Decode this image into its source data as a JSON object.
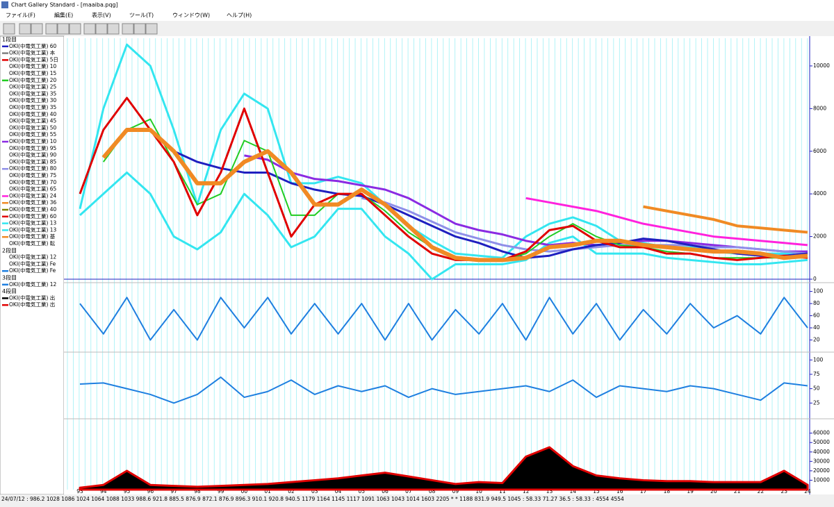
{
  "window": {
    "title": "Chart Gallery Standard - [maaiba.pqg]"
  },
  "menu": [
    "ファイル(F)",
    "編集(E)",
    "表示(V)",
    "ツール(T)",
    "ウィンドウ(W)",
    "ヘルプ(H)"
  ],
  "legend": {
    "groups": [
      {
        "heading": "1段目",
        "items": [
          {
            "label": "OKI(中電気工業) 60",
            "color": "#1f1fbf"
          },
          {
            "label": "OKI(中電気工業) 本",
            "color": "#808080"
          },
          {
            "label": "OKI(中電気工業) 5日",
            "color": "#e00000"
          },
          {
            "label": "OKI(中電気工業) 10",
            "color": "#ffffff"
          },
          {
            "label": "OKI(中電気工業) 15",
            "color": "#ffffff"
          },
          {
            "label": "OKI(中電気工業) 20",
            "color": "#22cc22"
          },
          {
            "label": "OKI(中電気工業) 25",
            "color": "#ffffff"
          },
          {
            "label": "OKI(中電気工業) 35",
            "color": "#ffffff"
          },
          {
            "label": "OKI(中電気工業) 30",
            "color": "#ffffff"
          },
          {
            "label": "OKI(中電気工業) 35",
            "color": "#ffffff"
          },
          {
            "label": "OKI(中電気工業) 40",
            "color": "#ffffff"
          },
          {
            "label": "OKI(中電気工業) 45",
            "color": "#ffffff"
          },
          {
            "label": "OKI(中電気工業) 50",
            "color": "#ffffff"
          },
          {
            "label": "OKI(中電気工業) 55",
            "color": "#ffffff"
          },
          {
            "label": "OKI(中電気工業) 10",
            "color": "#8a2be2"
          },
          {
            "label": "OKI(中電気工業) 95",
            "color": "#ffffff"
          },
          {
            "label": "OKI(中電気工業) 90",
            "color": "#ffffff"
          },
          {
            "label": "OKI(中電気工業) 85",
            "color": "#ffffff"
          },
          {
            "label": "OKI(中電気工業) 80",
            "color": "#8f8fe8"
          },
          {
            "label": "OKI(中電気工業) 75",
            "color": "#ffffff"
          },
          {
            "label": "OKI(中電気工業) 70",
            "color": "#ffffff"
          },
          {
            "label": "OKI(中電気工業) 65",
            "color": "#ffffff"
          },
          {
            "label": "OKI(中電気工業) 24",
            "color": "#ff22dd"
          },
          {
            "label": "OKI(中電気工業) 36",
            "color": "#f08a24"
          },
          {
            "label": "OKI(中電気工業) 40",
            "color": "#808000"
          },
          {
            "label": "OKI(中電気工業) 60",
            "color": "#e00000"
          },
          {
            "label": "OKI(中電気工業) 13",
            "color": "#33e6f0"
          },
          {
            "label": "OKI(中電気工業) 13",
            "color": "#33e6f0"
          },
          {
            "label": "OKI(中電気工業) 基",
            "color": "#f08a24"
          },
          {
            "label": "OKI(中電気工業) 転",
            "color": "#ffffff"
          }
        ]
      },
      {
        "heading": "2段目",
        "items": [
          {
            "label": "OKI(中電気工業) 12",
            "color": "#ffffff"
          },
          {
            "label": "OKI(中電気工業) Fe",
            "color": "#ffffff"
          },
          {
            "label": "OKI(中電気工業) Fe",
            "color": "#1e7fe0"
          }
        ]
      },
      {
        "heading": "3段目",
        "items": [
          {
            "label": "OKI(中電気工業) 12",
            "color": "#1e7fe0"
          }
        ]
      },
      {
        "heading": "4段目",
        "items": [
          {
            "label": "OKI(中電気工業) 出",
            "color": "#000000"
          },
          {
            "label": "OKI(中電気工業) 出",
            "color": "#e00000"
          }
        ]
      }
    ]
  },
  "x_labels": [
    "93",
    "94",
    "95",
    "96",
    "97",
    "98",
    "99",
    "00",
    "01",
    "02",
    "03",
    "04",
    "05",
    "06",
    "07",
    "08",
    "09",
    "10",
    "11",
    "12",
    "13",
    "14",
    "15",
    "16",
    "17",
    "18",
    "19",
    "20",
    "21",
    "22",
    "23",
    "24"
  ],
  "panels": [
    {
      "ylim": [
        0,
        11300
      ],
      "yticks": [
        0,
        2000,
        4000,
        6000,
        8000,
        10000
      ],
      "series": [
        {
          "color": "#33e6f0",
          "width": 3,
          "values": [
            3300,
            8000,
            11000,
            10000,
            7000,
            3500,
            7000,
            8700,
            8000,
            4500,
            4500,
            4800,
            4500,
            3500,
            2500,
            1800,
            1200,
            1100,
            1000,
            2000,
            2600,
            2900,
            2500,
            1800,
            1700,
            1500,
            1500,
            1300,
            1200,
            1200,
            1200,
            1300
          ]
        },
        {
          "color": "#33e6f0",
          "width": 3,
          "values": [
            3000,
            4000,
            5000,
            4000,
            2000,
            1400,
            2200,
            4000,
            3000,
            1500,
            2000,
            3300,
            3300,
            2000,
            1200,
            0,
            700,
            700,
            700,
            900,
            1700,
            2000,
            1200,
            1200,
            1200,
            1000,
            900,
            800,
            700,
            700,
            800,
            900
          ]
        },
        {
          "color": "#ff22dd",
          "width": 3,
          "values": [
            null,
            null,
            null,
            null,
            null,
            null,
            null,
            null,
            null,
            null,
            null,
            null,
            null,
            null,
            null,
            null,
            null,
            null,
            null,
            3800,
            3600,
            3400,
            3200,
            2900,
            2600,
            2400,
            2200,
            2000,
            1900,
            1800,
            1700,
            1600
          ]
        },
        {
          "color": "#f08a24",
          "width": 4,
          "values": [
            null,
            null,
            null,
            null,
            null,
            null,
            null,
            null,
            null,
            null,
            null,
            null,
            null,
            null,
            null,
            null,
            null,
            null,
            null,
            null,
            null,
            null,
            null,
            null,
            3400,
            3200,
            3000,
            2800,
            2500,
            2400,
            2300,
            2200
          ]
        },
        {
          "color": "#8a2be2",
          "width": 3,
          "values": [
            null,
            null,
            null,
            null,
            null,
            null,
            null,
            5800,
            5600,
            5000,
            4700,
            4600,
            4400,
            4200,
            3800,
            3200,
            2600,
            2300,
            2100,
            1800,
            1600,
            1700,
            1600,
            1700,
            1800,
            1800,
            1700,
            1600,
            1500,
            1400,
            1300,
            1300
          ]
        },
        {
          "color": "#8f8fe8",
          "width": 3,
          "values": [
            null,
            null,
            null,
            null,
            null,
            null,
            null,
            null,
            null,
            null,
            null,
            null,
            3800,
            3600,
            3200,
            2700,
            2200,
            1900,
            1600,
            1400,
            1300,
            1400,
            1500,
            1600,
            1600,
            1600,
            1600,
            1500,
            1500,
            1400,
            1300,
            1200
          ]
        },
        {
          "color": "#1f1fbf",
          "width": 3,
          "values": [
            null,
            null,
            null,
            null,
            6000,
            5500,
            5200,
            5000,
            5000,
            4500,
            4200,
            4000,
            3900,
            3500,
            3000,
            2500,
            2000,
            1700,
            1300,
            1000,
            1100,
            1400,
            1600,
            1700,
            1900,
            1800,
            1600,
            1400,
            1200,
            1100,
            1100,
            1200
          ]
        },
        {
          "color": "#22cc22",
          "width": 2,
          "values": [
            null,
            5500,
            7000,
            7500,
            5500,
            3500,
            4000,
            6500,
            6000,
            3000,
            3000,
            4000,
            4000,
            3200,
            2200,
            1500,
            1000,
            900,
            900,
            1200,
            2000,
            2600,
            2000,
            1600,
            1500,
            1300,
            1200,
            1000,
            1000,
            1000,
            1000,
            1000
          ]
        },
        {
          "color": "#e00000",
          "width": 3,
          "values": [
            4000,
            7000,
            8500,
            7000,
            5500,
            3000,
            5000,
            8000,
            5000,
            2000,
            3500,
            4000,
            4000,
            3000,
            2000,
            1200,
            900,
            900,
            900,
            1300,
            2300,
            2500,
            1800,
            1500,
            1500,
            1200,
            1200,
            1000,
            900,
            1000,
            1100,
            1000
          ]
        },
        {
          "color": "#f08a24",
          "width": 6,
          "values": [
            null,
            5700,
            7000,
            7000,
            6000,
            4500,
            4500,
            5500,
            6000,
            5000,
            3500,
            3500,
            4200,
            3500,
            2500,
            1500,
            1000,
            900,
            900,
            1000,
            1500,
            1600,
            1800,
            1800,
            1600,
            1500,
            1400,
            1300,
            1300,
            1200,
            1000,
            1100
          ]
        }
      ]
    },
    {
      "ylim": [
        0,
        111
      ],
      "yticks": [
        20,
        40,
        60,
        80,
        100
      ],
      "series": [
        {
          "color": "#1e7fe0",
          "width": 2,
          "values": [
            80,
            30,
            90,
            20,
            70,
            20,
            90,
            40,
            90,
            30,
            80,
            30,
            80,
            20,
            80,
            20,
            70,
            30,
            80,
            20,
            90,
            30,
            80,
            20,
            70,
            30,
            80,
            40,
            60,
            30,
            90,
            40
          ]
        }
      ]
    },
    {
      "ylim": [
        0,
        110
      ],
      "yticks": [
        25,
        50,
        75,
        100
      ],
      "series": [
        {
          "color": "#1e7fe0",
          "width": 2,
          "values": [
            58,
            60,
            50,
            40,
            25,
            40,
            70,
            35,
            45,
            65,
            40,
            55,
            45,
            55,
            35,
            50,
            40,
            45,
            50,
            55,
            45,
            65,
            35,
            55,
            50,
            45,
            55,
            50,
            40,
            30,
            60,
            55
          ]
        }
      ]
    },
    {
      "ylim": [
        0,
        73000
      ],
      "yticks": [
        10000,
        20000,
        30000,
        40000,
        50000,
        60000
      ],
      "series": [
        {
          "type": "area",
          "color": "#e00000",
          "values": [
            2000,
            5000,
            20000,
            5000,
            4000,
            3000,
            4000,
            5000,
            6000,
            8000,
            10000,
            12000,
            15000,
            18000,
            14000,
            10000,
            6000,
            8000,
            7000,
            35000,
            45000,
            25000,
            15000,
            12000,
            10000,
            9000,
            9000,
            8000,
            8000,
            8000,
            20000,
            5000
          ]
        }
      ]
    }
  ],
  "status": "24/07/12 : 986.2 1028 1086 1024 1064  1088 1033 988.6 921.8 885.5 876.9 872.1 876.9 896.3 910.1 920.8 940.5 1179 1164 1145 1117 1091 1063 1043 1014 1603 2205 * * 1188 831.9 949.5 1045 : 58.33 71.27 36.5 : 58.33 : 4554 4554"
}
